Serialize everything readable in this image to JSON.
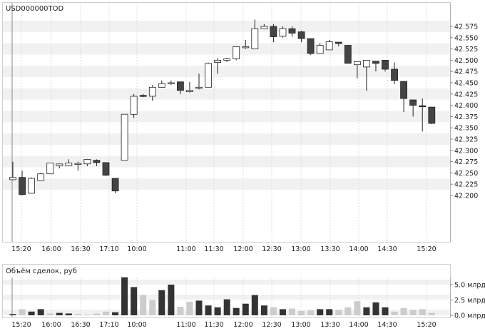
{
  "chart_data": [
    {
      "type": "candlestick",
      "title": "USD000000TOD",
      "x_tick_labels": [
        "15:20",
        "16:00",
        "16:30",
        "17:10",
        "10:00",
        "11:00",
        "11:30",
        "12:00",
        "12:30",
        "13:00",
        "13:30",
        "14:00",
        "14:30",
        "15:20"
      ],
      "y_tick_labels": [
        "42.575",
        "42.550",
        "42.525",
        "42.500",
        "42.475",
        "42.450",
        "42.425",
        "42.400",
        "42.375",
        "42.350",
        "42.325",
        "42.300",
        "42.275",
        "42.250",
        "42.225",
        "42.200"
      ],
      "ylim": [
        42.19,
        42.595
      ],
      "grid": "horizontal bands",
      "colors": {
        "up_fill": "#ffffff",
        "down_fill": "#444444",
        "outline": "#222222"
      },
      "candles": [
        {
          "o": 42.235,
          "h": 42.275,
          "l": 42.235,
          "c": 42.24
        },
        {
          "o": 42.24,
          "h": 42.255,
          "l": 42.2,
          "c": 42.202
        },
        {
          "o": 42.205,
          "h": 42.24,
          "l": 42.205,
          "c": 42.238
        },
        {
          "o": 42.233,
          "h": 42.25,
          "l": 42.233,
          "c": 42.248
        },
        {
          "o": 42.248,
          "h": 42.272,
          "l": 42.248,
          "c": 42.272
        },
        {
          "o": 42.266,
          "h": 42.27,
          "l": 42.26,
          "c": 42.27
        },
        {
          "o": 42.266,
          "h": 42.28,
          "l": 42.265,
          "c": 42.272
        },
        {
          "o": 42.27,
          "h": 42.275,
          "l": 42.255,
          "c": 42.271
        },
        {
          "o": 42.27,
          "h": 42.281,
          "l": 42.265,
          "c": 42.28
        },
        {
          "o": 42.278,
          "h": 42.28,
          "l": 42.265,
          "c": 42.273
        },
        {
          "o": 42.273,
          "h": 42.273,
          "l": 42.243,
          "c": 42.245
        },
        {
          "o": 42.238,
          "h": 42.238,
          "l": 42.205,
          "c": 42.21
        },
        {
          "o": 42.278,
          "h": 42.38,
          "l": 42.278,
          "c": 42.38
        },
        {
          "o": 42.38,
          "h": 42.425,
          "l": 42.372,
          "c": 42.42
        },
        {
          "o": 42.422,
          "h": 42.425,
          "l": 42.418,
          "c": 42.42
        },
        {
          "o": 42.42,
          "h": 42.445,
          "l": 42.41,
          "c": 42.44
        },
        {
          "o": 42.44,
          "h": 42.455,
          "l": 42.44,
          "c": 42.448
        },
        {
          "o": 42.45,
          "h": 42.455,
          "l": 42.445,
          "c": 42.45
        },
        {
          "o": 42.452,
          "h": 42.452,
          "l": 42.425,
          "c": 42.433
        },
        {
          "o": 42.43,
          "h": 42.452,
          "l": 42.428,
          "c": 42.433
        },
        {
          "o": 42.44,
          "h": 42.47,
          "l": 42.435,
          "c": 42.44
        },
        {
          "o": 42.44,
          "h": 42.495,
          "l": 42.44,
          "c": 42.493
        },
        {
          "o": 42.495,
          "h": 42.505,
          "l": 42.47,
          "c": 42.5
        },
        {
          "o": 42.5,
          "h": 42.505,
          "l": 42.496,
          "c": 42.503
        },
        {
          "o": 42.503,
          "h": 42.53,
          "l": 42.5,
          "c": 42.53
        },
        {
          "o": 42.528,
          "h": 42.545,
          "l": 42.525,
          "c": 42.53
        },
        {
          "o": 42.525,
          "h": 42.59,
          "l": 42.524,
          "c": 42.57
        },
        {
          "o": 42.57,
          "h": 42.58,
          "l": 42.57,
          "c": 42.575
        },
        {
          "o": 42.575,
          "h": 42.58,
          "l": 42.54,
          "c": 42.552
        },
        {
          "o": 42.553,
          "h": 42.575,
          "l": 42.55,
          "c": 42.57
        },
        {
          "o": 42.57,
          "h": 42.575,
          "l": 42.552,
          "c": 42.56
        },
        {
          "o": 42.563,
          "h": 42.565,
          "l": 42.54,
          "c": 42.548
        },
        {
          "o": 42.548,
          "h": 42.548,
          "l": 42.512,
          "c": 42.515
        },
        {
          "o": 42.515,
          "h": 42.538,
          "l": 42.515,
          "c": 42.533
        },
        {
          "o": 42.523,
          "h": 42.545,
          "l": 42.523,
          "c": 42.541
        },
        {
          "o": 42.54,
          "h": 42.54,
          "l": 42.531,
          "c": 42.537
        },
        {
          "o": 42.533,
          "h": 42.533,
          "l": 42.493,
          "c": 42.493
        },
        {
          "o": 42.49,
          "h": 42.497,
          "l": 42.46,
          "c": 42.497
        },
        {
          "o": 42.485,
          "h": 42.5,
          "l": 42.432,
          "c": 42.5
        },
        {
          "o": 42.498,
          "h": 42.498,
          "l": 42.475,
          "c": 42.493
        },
        {
          "o": 42.5,
          "h": 42.5,
          "l": 42.475,
          "c": 42.48
        },
        {
          "o": 42.48,
          "h": 42.495,
          "l": 42.447,
          "c": 42.455
        },
        {
          "o": 42.453,
          "h": 42.453,
          "l": 42.385,
          "c": 42.415
        },
        {
          "o": 42.412,
          "h": 42.412,
          "l": 42.375,
          "c": 42.4
        },
        {
          "o": 42.399,
          "h": 42.415,
          "l": 42.342,
          "c": 42.398
        },
        {
          "o": 42.396,
          "h": 42.396,
          "l": 42.358,
          "c": 42.36
        }
      ]
    },
    {
      "type": "bar",
      "title": "Объём сделок, руб",
      "y_tick_labels": [
        "5.0 млрд",
        "2.5 млрд",
        "0.0 млрд"
      ],
      "ylim": [
        0,
        6.5
      ],
      "unit": "млрд",
      "colors": {
        "up": "#cccccc",
        "down": "#333333"
      },
      "bars": [
        {
          "v": 0.2,
          "d": true
        },
        {
          "v": 1.0,
          "d": false
        },
        {
          "v": 0.6,
          "d": true
        },
        {
          "v": 1.0,
          "d": true
        },
        {
          "v": 0.3,
          "d": false
        },
        {
          "v": 0.4,
          "d": true
        },
        {
          "v": 0.3,
          "d": true
        },
        {
          "v": 0.2,
          "d": false
        },
        {
          "v": 0.1,
          "d": false
        },
        {
          "v": 0.3,
          "d": false
        },
        {
          "v": 0.6,
          "d": false
        },
        {
          "v": 0.5,
          "d": true
        },
        {
          "v": 6.2,
          "d": true
        },
        {
          "v": 4.6,
          "d": true
        },
        {
          "v": 3.3,
          "d": false
        },
        {
          "v": 2.5,
          "d": false
        },
        {
          "v": 4.1,
          "d": true
        },
        {
          "v": 5.0,
          "d": true
        },
        {
          "v": 1.4,
          "d": false
        },
        {
          "v": 2.2,
          "d": false
        },
        {
          "v": 2.4,
          "d": true
        },
        {
          "v": 1.6,
          "d": true
        },
        {
          "v": 1.3,
          "d": true
        },
        {
          "v": 2.6,
          "d": true
        },
        {
          "v": 1.2,
          "d": true
        },
        {
          "v": 1.9,
          "d": true
        },
        {
          "v": 3.3,
          "d": true
        },
        {
          "v": 1.6,
          "d": true
        },
        {
          "v": 1.3,
          "d": false
        },
        {
          "v": 1.0,
          "d": true
        },
        {
          "v": 1.1,
          "d": false
        },
        {
          "v": 0.7,
          "d": false
        },
        {
          "v": 0.8,
          "d": false
        },
        {
          "v": 1.0,
          "d": true
        },
        {
          "v": 1.0,
          "d": true
        },
        {
          "v": 0.9,
          "d": false
        },
        {
          "v": 1.3,
          "d": false
        },
        {
          "v": 2.3,
          "d": false
        },
        {
          "v": 1.3,
          "d": true
        },
        {
          "v": 2.1,
          "d": true
        },
        {
          "v": 1.3,
          "d": true
        },
        {
          "v": 0.6,
          "d": false
        },
        {
          "v": 1.2,
          "d": false
        },
        {
          "v": 0.9,
          "d": false
        },
        {
          "v": 1.0,
          "d": false
        },
        {
          "v": 0.4,
          "d": false
        }
      ]
    }
  ]
}
